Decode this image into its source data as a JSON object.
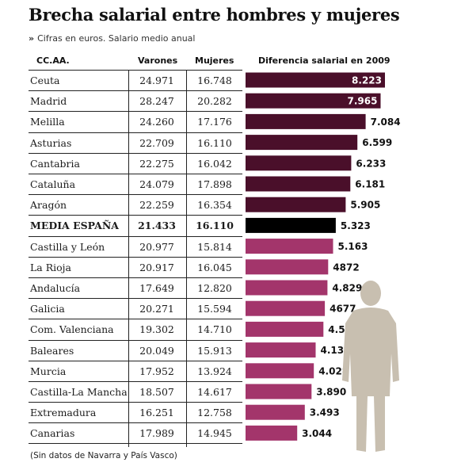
{
  "title": "Brecha salarial entre hombres y mujeres",
  "subtitle": "Cifras en euros. Salario medio anual",
  "subtitle_marker": "»",
  "headers": {
    "region": "CC.AA.",
    "men": "Varones",
    "women": "Mujeres",
    "gap": "Diferencia salarial en 2009"
  },
  "footnote": "(Sin datos de Navarra y País Vasco)",
  "colors": {
    "dark_bar": "#4a0f2a",
    "light_bar": "#a3356b",
    "average_bar": "#000000"
  },
  "chart_data": {
    "type": "table",
    "columns": [
      "CC.AA.",
      "Varones",
      "Mujeres",
      "Diferencia salarial en 2009"
    ],
    "rows": [
      {
        "region": "Ceuta",
        "men": "24.971",
        "women": "16.748",
        "gap_label": "8.223",
        "gap": 8223
      },
      {
        "region": "Madrid",
        "men": "28.247",
        "women": "20.282",
        "gap_label": "7.965",
        "gap": 7965
      },
      {
        "region": "Melilla",
        "men": "24.260",
        "women": "17.176",
        "gap_label": "7.084",
        "gap": 7084
      },
      {
        "region": "Asturias",
        "men": "22.709",
        "women": "16.110",
        "gap_label": "6.599",
        "gap": 6599
      },
      {
        "region": "Cantabria",
        "men": "22.275",
        "women": "16.042",
        "gap_label": "6.233",
        "gap": 6233
      },
      {
        "region": "Cataluña",
        "men": "24.079",
        "women": "17.898",
        "gap_label": "6.181",
        "gap": 6181
      },
      {
        "region": "Aragón",
        "men": "22.259",
        "women": "16.354",
        "gap_label": "5.905",
        "gap": 5905
      },
      {
        "region": "MEDIA ESPAÑA",
        "men": "21.433",
        "women": "16.110",
        "gap_label": "5.323",
        "gap": 5323,
        "average": true
      },
      {
        "region": "Castilla y León",
        "men": "20.977",
        "women": "15.814",
        "gap_label": "5.163",
        "gap": 5163
      },
      {
        "region": "La Rioja",
        "men": "20.917",
        "women": "16.045",
        "gap_label": "4872",
        "gap": 4872
      },
      {
        "region": "Andalucía",
        "men": "17.649",
        "women": "12.820",
        "gap_label": "4.829",
        "gap": 4829
      },
      {
        "region": "Galicia",
        "men": "20.271",
        "women": "15.594",
        "gap_label": "4677",
        "gap": 4677
      },
      {
        "region": "Com. Valenciana",
        "men": "19.302",
        "women": "14.710",
        "gap_label": "4.592",
        "gap": 4592
      },
      {
        "region": "Baleares",
        "men": "20.049",
        "women": "15.913",
        "gap_label": "4.136",
        "gap": 4136
      },
      {
        "region": "Murcia",
        "men": "17.952",
        "women": "13.924",
        "gap_label": "4.028",
        "gap": 4028
      },
      {
        "region": "Castilla-La Mancha",
        "men": "18.507",
        "women": "14.617",
        "gap_label": "3.890",
        "gap": 3890
      },
      {
        "region": "Extremadura",
        "men": "16.251",
        "women": "12.758",
        "gap_label": "3.493",
        "gap": 3493
      },
      {
        "region": "Canarias",
        "men": "17.989",
        "women": "14.945",
        "gap_label": "3.044",
        "gap": 3044
      }
    ]
  }
}
